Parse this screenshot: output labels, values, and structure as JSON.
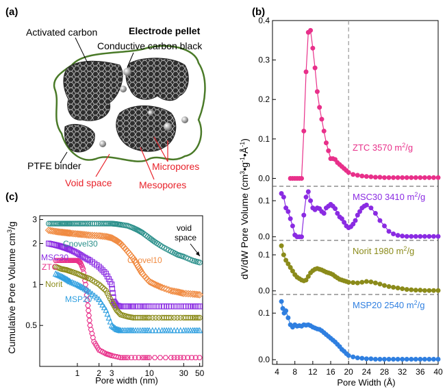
{
  "panel_a": {
    "label": "(a)",
    "title": "Electrode pellet",
    "labels": {
      "activated_carbon": "Activated carbon",
      "carbon_black": "Conductive carbon black",
      "ptfe": "PTFE binder",
      "void": "Void space",
      "micropores": "Micropores",
      "mesopores": "Mesopores"
    },
    "colors": {
      "outline": "#4a7a28",
      "particle": "#3a3a3a",
      "red_label": "#e8222a"
    }
  },
  "chart_data": [
    {
      "panel": "(b)",
      "type": "line",
      "xlabel": "Pore Width (Å)",
      "ylabel_main": "dV/dW Pore Volume (cm",
      "ylabel_sup1": "3",
      "ylabel_mid": "•g",
      "ylabel_sup2": "-1",
      "ylabel_mid2": "•Å",
      "ylabel_sup3": "-1",
      "ylabel_end": ")",
      "xlim": [
        3,
        40
      ],
      "xticks": [
        "4",
        "8",
        "12",
        "16",
        "20",
        "24",
        "28",
        "32",
        "36",
        "40"
      ],
      "xtick_values": [
        4,
        8,
        12,
        16,
        20,
        24,
        28,
        32,
        36,
        40
      ],
      "reference_line_x": 20,
      "series": [
        {
          "name": "ZTC 3570 m",
          "sup": "2",
          "unit": "/g",
          "color": "#e8308a",
          "ylim": [
            -0.02,
            0.4
          ],
          "yticks": [
            "0.0",
            "0.1",
            "0.2",
            "0.3",
            "0.4"
          ],
          "ytick_values": [
            0.0,
            0.1,
            0.2,
            0.3,
            0.4
          ],
          "x": [
            7,
            7.5,
            8,
            8.5,
            9,
            9.5,
            10,
            10.5,
            11,
            11.5,
            12,
            12.5,
            13,
            13.5,
            14,
            14.5,
            15,
            15.5,
            16,
            16.5,
            17,
            17.5,
            18,
            18.5,
            19,
            19.5,
            20,
            21,
            22,
            23,
            24,
            25,
            26,
            27,
            28,
            29,
            30,
            31,
            32,
            33,
            34,
            35,
            36,
            37,
            38,
            39,
            40
          ],
          "y": [
            0,
            0,
            0,
            0,
            0,
            0,
            0.12,
            0.27,
            0.37,
            0.375,
            0.33,
            0.28,
            0.22,
            0.18,
            0.15,
            0.12,
            0.09,
            0.07,
            0.05,
            0.05,
            0.048,
            0.04,
            0.035,
            0.03,
            0.025,
            0.02,
            0.015,
            0.01,
            0.008,
            0.006,
            0.005,
            0.004,
            0.003,
            0.003,
            0.002,
            0.002,
            0.002,
            0.002,
            0.002,
            0.002,
            0.002,
            0.002,
            0.002,
            0.002,
            0.002,
            0.002,
            0.002
          ]
        },
        {
          "name": "MSC30 3410 m",
          "sup": "2",
          "unit": "/g",
          "color": "#8a2be2",
          "ylim": [
            -0.01,
            0.14
          ],
          "yticks": [
            "0.0",
            "0.1"
          ],
          "ytick_values": [
            0.0,
            0.1
          ],
          "x": [
            5,
            5.5,
            6,
            6.5,
            7,
            7.5,
            8,
            8.5,
            9,
            9.5,
            10,
            10.5,
            11,
            11.5,
            12,
            12.5,
            13,
            13.5,
            14,
            14.5,
            15,
            15.5,
            16,
            16.5,
            17,
            17.5,
            18,
            18.5,
            19,
            19.5,
            20,
            20.5,
            21,
            21.5,
            22,
            22.5,
            23,
            23.5,
            24,
            25,
            26,
            27,
            28,
            29,
            30,
            31,
            32,
            33,
            34,
            35,
            36,
            37,
            38,
            39,
            40
          ],
          "y": [
            0.12,
            0.11,
            0.08,
            0.07,
            0.05,
            0.03,
            0.005,
            0.0,
            0.0,
            0.0,
            0.06,
            0.11,
            0.125,
            0.1,
            0.08,
            0.075,
            0.08,
            0.078,
            0.07,
            0.065,
            0.08,
            0.085,
            0.09,
            0.085,
            0.078,
            0.065,
            0.055,
            0.05,
            0.04,
            0.03,
            0.025,
            0.028,
            0.035,
            0.045,
            0.06,
            0.07,
            0.08,
            0.085,
            0.088,
            0.08,
            0.065,
            0.045,
            0.03,
            0.015,
            0.008,
            0.004,
            0.002,
            0.001,
            0.001,
            0.001,
            0.001,
            0.001,
            0.001,
            0.001,
            0.001
          ]
        },
        {
          "name": "Norit 1980 m",
          "sup": "2",
          "unit": "/g",
          "color": "#8b8b1a",
          "ylim": [
            -0.01,
            0.14
          ],
          "yticks": [
            "0.0",
            "0.1"
          ],
          "ytick_values": [
            0.0,
            0.1
          ],
          "x": [
            5,
            5.5,
            6,
            6.5,
            7,
            7.5,
            8,
            8.5,
            9,
            9.5,
            10,
            10.5,
            11,
            11.5,
            12,
            12.5,
            13,
            13.5,
            14,
            14.5,
            15,
            15.5,
            16,
            16.5,
            17,
            17.5,
            18,
            18.5,
            19,
            19.5,
            20,
            21,
            22,
            23,
            24,
            25,
            26,
            27,
            28,
            29,
            30,
            31,
            32,
            33,
            34,
            35,
            36,
            37,
            38,
            39,
            40
          ],
          "y": [
            0.125,
            0.1,
            0.085,
            0.075,
            0.065,
            0.055,
            0.045,
            0.038,
            0.034,
            0.03,
            0.028,
            0.03,
            0.04,
            0.05,
            0.056,
            0.06,
            0.062,
            0.06,
            0.058,
            0.055,
            0.052,
            0.05,
            0.048,
            0.045,
            0.04,
            0.036,
            0.032,
            0.03,
            0.028,
            0.026,
            0.024,
            0.023,
            0.022,
            0.024,
            0.026,
            0.025,
            0.022,
            0.019,
            0.015,
            0.012,
            0.01,
            0.008,
            0.006,
            0.004,
            0.003,
            0.002,
            0.002,
            0.001,
            0.001,
            0.001,
            0.001
          ]
        },
        {
          "name": "MSP20 2540 m",
          "sup": "2",
          "unit": "/g",
          "color": "#2f7fe0",
          "ylim": [
            -0.01,
            0.14
          ],
          "yticks": [
            "0.0",
            "0.1"
          ],
          "ytick_values": [
            0.0,
            0.1
          ],
          "x": [
            5,
            5.3,
            5.6,
            6,
            6.5,
            7,
            7.5,
            8,
            8.5,
            9,
            9.5,
            10,
            10.5,
            11,
            11.5,
            12,
            12.5,
            13,
            13.5,
            14,
            14.5,
            15,
            15.5,
            16,
            16.5,
            17,
            17.5,
            18,
            18.5,
            19,
            19.5,
            20,
            21,
            22,
            23,
            24,
            25,
            26,
            27,
            28,
            29,
            30,
            31,
            32,
            33,
            34,
            35,
            36,
            37,
            38,
            39,
            40
          ],
          "y": [
            0.125,
            0.11,
            0.1,
            0.105,
            0.09,
            0.075,
            0.07,
            0.075,
            0.072,
            0.073,
            0.072,
            0.075,
            0.074,
            0.075,
            0.073,
            0.07,
            0.068,
            0.066,
            0.065,
            0.062,
            0.058,
            0.054,
            0.05,
            0.046,
            0.042,
            0.038,
            0.033,
            0.028,
            0.022,
            0.018,
            0.013,
            0.009,
            0.006,
            0.004,
            0.003,
            0.002,
            0.002,
            0.001,
            0.001,
            0.001,
            0.001,
            0.001,
            0.001,
            0.001,
            0.001,
            0.001,
            0.001,
            0.001,
            0.001,
            0.001,
            0.001,
            0.001
          ]
        }
      ]
    },
    {
      "panel": "(c)",
      "type": "scatter",
      "xscale": "log",
      "yscale": "log",
      "xlabel": "Pore width (nm)",
      "ylabel_main": "Cumulative Pore Volume cm",
      "ylabel_sup": "3",
      "ylabel_end": "/g",
      "xlim": [
        0.3,
        55
      ],
      "ylim": [
        0.25,
        3.2
      ],
      "xticks": [
        "1",
        "2",
        "3",
        "10",
        "30",
        "50"
      ],
      "xtick_values": [
        1,
        2,
        3,
        10,
        30,
        50
      ],
      "yticks": [
        "0.5",
        "1",
        "2",
        "3"
      ],
      "ytick_values": [
        0.5,
        1,
        2,
        3
      ],
      "annotation": {
        "line1": "void",
        "line2": "space"
      },
      "series": [
        {
          "name": "Cnovel30",
          "color": "#2a8f8a",
          "marker": "circle",
          "x": [
            0.4,
            0.5,
            0.6,
            0.7,
            0.8,
            1,
            1.2,
            1.5,
            2,
            2.5,
            3,
            3.5,
            4,
            5,
            6,
            7,
            8,
            10,
            12,
            15,
            20,
            25,
            30,
            40,
            50
          ],
          "y": [
            2.8,
            2.8,
            2.8,
            2.8,
            2.8,
            2.8,
            2.8,
            2.8,
            2.8,
            2.8,
            2.8,
            2.78,
            2.75,
            2.7,
            2.6,
            2.5,
            2.4,
            2.2,
            2.05,
            1.9,
            1.75,
            1.65,
            1.6,
            1.5,
            1.45
          ]
        },
        {
          "name": "Cnovel10",
          "color": "#f08a40",
          "marker": "diamond",
          "x": [
            0.4,
            0.5,
            0.6,
            0.7,
            0.8,
            1,
            1.2,
            1.5,
            2,
            2.5,
            3,
            3.5,
            4,
            5,
            6,
            7,
            8,
            10,
            12,
            15,
            20,
            25,
            30,
            40,
            50
          ],
          "y": [
            2.5,
            2.45,
            2.42,
            2.4,
            2.38,
            2.35,
            2.33,
            2.3,
            2.28,
            2.25,
            2.2,
            2.1,
            2.0,
            1.75,
            1.55,
            1.35,
            1.2,
            1.05,
            1.0,
            0.95,
            0.9,
            0.88,
            0.86,
            0.85,
            0.84
          ]
        },
        {
          "name": "MSC30",
          "color": "#8a2be2",
          "marker": "square",
          "x": [
            0.4,
            0.5,
            0.6,
            0.7,
            0.8,
            1,
            1.2,
            1.5,
            2,
            2.5,
            3,
            3.2,
            3.5,
            4,
            5,
            6,
            8,
            10,
            15,
            20,
            30,
            40,
            50
          ],
          "y": [
            2.0,
            1.95,
            1.9,
            1.85,
            1.8,
            1.7,
            1.6,
            1.5,
            1.35,
            1.2,
            1.0,
            0.75,
            0.7,
            0.69,
            0.69,
            0.69,
            0.69,
            0.69,
            0.69,
            0.69,
            0.69,
            0.69,
            0.69
          ]
        },
        {
          "name": "ZTC",
          "color": "#e8308a",
          "marker": "hexagon",
          "x": [
            0.5,
            0.6,
            0.7,
            0.8,
            0.9,
            1,
            1.1,
            1.2,
            1.3,
            1.4,
            1.5,
            1.7,
            2,
            2.5,
            3,
            4,
            5,
            8,
            10,
            20,
            30,
            50
          ],
          "y": [
            1.5,
            1.5,
            1.5,
            1.5,
            1.5,
            1.5,
            1.45,
            1.3,
            1.0,
            0.7,
            0.5,
            0.38,
            0.33,
            0.31,
            0.3,
            0.29,
            0.29,
            0.29,
            0.29,
            0.29,
            0.29,
            0.29
          ]
        },
        {
          "name": "Norit",
          "color": "#8b8b1a",
          "marker": "circle",
          "x": [
            0.5,
            0.6,
            0.7,
            0.8,
            1,
            1.2,
            1.5,
            2,
            2.5,
            3,
            3.5,
            4,
            5,
            6,
            8,
            10,
            15,
            20,
            30,
            40,
            50
          ],
          "y": [
            1.35,
            1.3,
            1.28,
            1.25,
            1.2,
            1.15,
            1.1,
            1.0,
            0.9,
            0.75,
            0.65,
            0.6,
            0.58,
            0.57,
            0.57,
            0.57,
            0.57,
            0.57,
            0.57,
            0.57,
            0.57
          ]
        },
        {
          "name": "MSP20",
          "color": "#2f9fe0",
          "marker": "triangle",
          "x": [
            0.5,
            0.6,
            0.7,
            0.8,
            1,
            1.2,
            1.5,
            2,
            2.5,
            3,
            3.5,
            4,
            5,
            6,
            8,
            10,
            15,
            20,
            30,
            40,
            50
          ],
          "y": [
            1.2,
            1.15,
            1.1,
            1.05,
            1.0,
            0.95,
            0.88,
            0.78,
            0.65,
            0.5,
            0.47,
            0.46,
            0.46,
            0.46,
            0.46,
            0.46,
            0.46,
            0.46,
            0.46,
            0.46,
            0.46
          ]
        }
      ]
    }
  ]
}
